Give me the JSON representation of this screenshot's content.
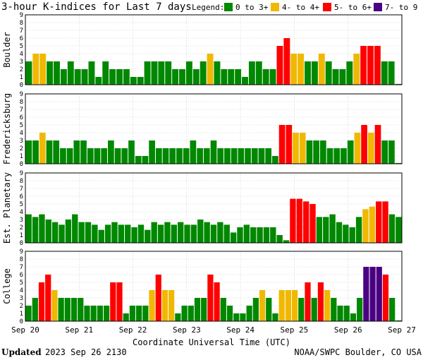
{
  "chart_data": {
    "type": "bar",
    "title": "3-hour K-indices for Last 7 days",
    "legend": {
      "label": "Legend:",
      "items": [
        {
          "label": "0 to 3+",
          "color": "#008800"
        },
        {
          "label": "4- to 4+",
          "color": "#f0b800"
        },
        {
          "label": "5- to 6+",
          "color": "#ff0000"
        },
        {
          "label": "7- to 9",
          "color": "#4b0082"
        }
      ]
    },
    "xlabel": "Coordinate Universal Time (UTC)",
    "x_ticks": [
      "Sep 20",
      "Sep 21",
      "Sep 22",
      "Sep 23",
      "Sep 24",
      "Sep 25",
      "Sep 26",
      "Sep 27"
    ],
    "y_ticks": [
      "0",
      "1",
      "2",
      "3",
      "4",
      "5",
      "6",
      "7",
      "8",
      "9"
    ],
    "ylim": [
      0,
      9
    ],
    "grid": true,
    "panels": [
      {
        "name": "Boulder",
        "values": [
          3,
          4,
          4,
          3,
          3,
          2,
          3,
          2,
          2,
          3,
          1,
          3,
          2,
          2,
          2,
          1,
          1,
          3,
          3,
          3,
          3,
          2,
          2,
          3,
          2,
          3,
          4,
          3,
          2,
          2,
          2,
          1,
          3,
          3,
          2,
          2,
          5,
          6,
          4,
          4,
          3,
          3,
          4,
          3,
          2,
          2,
          3,
          4,
          5,
          5,
          5,
          3,
          3,
          0.1
        ]
      },
      {
        "name": "Fredericksburg",
        "values": [
          3,
          3,
          4,
          3,
          3,
          2,
          2,
          3,
          3,
          2,
          2,
          2,
          3,
          2,
          2,
          3,
          1,
          1,
          3,
          2,
          2,
          2,
          2,
          2,
          3,
          2,
          2,
          3,
          2,
          2,
          2,
          2,
          2,
          2,
          2,
          2,
          1,
          5,
          5,
          4,
          4,
          3,
          3,
          3,
          2,
          2,
          2,
          3,
          4,
          5,
          4,
          5,
          3,
          3,
          0.1
        ]
      },
      {
        "name": "Est. Planetary",
        "values": [
          3.67,
          3.33,
          3.67,
          3,
          2.67,
          2.33,
          3,
          3.67,
          2.67,
          2.67,
          2.33,
          1.67,
          2.33,
          2.67,
          2.33,
          2.33,
          2,
          2.33,
          1.67,
          2.67,
          2.33,
          2.67,
          2.33,
          2.67,
          2.33,
          2.33,
          3,
          2.67,
          2.33,
          2.67,
          2.33,
          1.33,
          2,
          2.33,
          2,
          2,
          2,
          2,
          1,
          0.33,
          5.67,
          5.67,
          5.33,
          5,
          3.33,
          3.33,
          3.67,
          2.67,
          2.33,
          2,
          3.33,
          4.33,
          4.67,
          5.33,
          5.33,
          3.67,
          3.33
        ]
      },
      {
        "name": "College",
        "values": [
          2,
          3,
          5,
          6,
          4,
          3,
          3,
          3,
          3,
          2,
          2,
          2,
          2,
          5,
          5,
          1,
          2,
          2,
          2,
          4,
          6,
          4,
          4,
          1,
          2,
          2,
          3,
          3,
          6,
          5,
          3,
          2,
          1,
          1,
          2,
          3,
          4,
          3,
          1,
          4,
          4,
          4,
          3,
          5,
          3,
          5,
          4,
          3,
          2,
          2,
          1,
          3,
          7,
          7,
          7,
          6,
          3,
          0.1
        ]
      }
    ]
  },
  "footer": {
    "updated_label": "Updated",
    "updated_value": "2023 Sep 26 2130",
    "source": "NOAA/SWPC Boulder, CO USA"
  }
}
